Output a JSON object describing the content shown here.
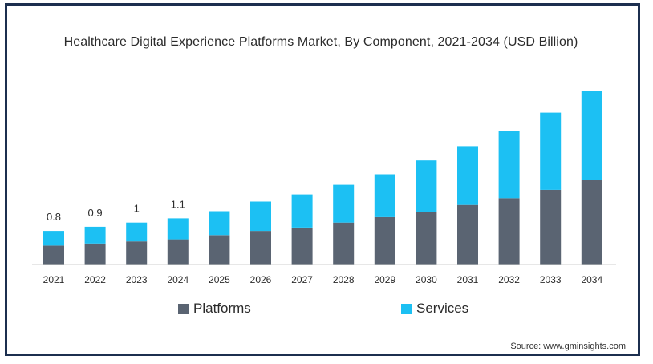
{
  "chart_data": {
    "type": "bar",
    "stacked": true,
    "title": "Healthcare Digital Experience Platforms Market, By Component, 2021-2034 (USD Billion)",
    "categories": [
      "2021",
      "2022",
      "2023",
      "2024",
      "2025",
      "2026",
      "2027",
      "2028",
      "2029",
      "2030",
      "2031",
      "2032",
      "2033",
      "2034"
    ],
    "series": [
      {
        "name": "Platforms",
        "color": "#5a6472",
        "values": [
          0.45,
          0.5,
          0.55,
          0.6,
          0.7,
          0.8,
          0.88,
          1.0,
          1.13,
          1.26,
          1.42,
          1.58,
          1.78,
          2.02
        ]
      },
      {
        "name": "Services",
        "color": "#1cc0f3",
        "values": [
          0.35,
          0.4,
          0.45,
          0.5,
          0.57,
          0.7,
          0.79,
          0.9,
          1.02,
          1.22,
          1.4,
          1.6,
          1.84,
          2.11
        ]
      }
    ],
    "data_labels": [
      "0.8",
      "0.9",
      "1",
      "1.1",
      "",
      "",
      "",
      "",
      "",
      "",
      "",
      "",
      "",
      ""
    ],
    "ylim": [
      0,
      4.3
    ],
    "grid": false,
    "legend_position": "bottom"
  },
  "source": "Source: www.gminsights.com"
}
